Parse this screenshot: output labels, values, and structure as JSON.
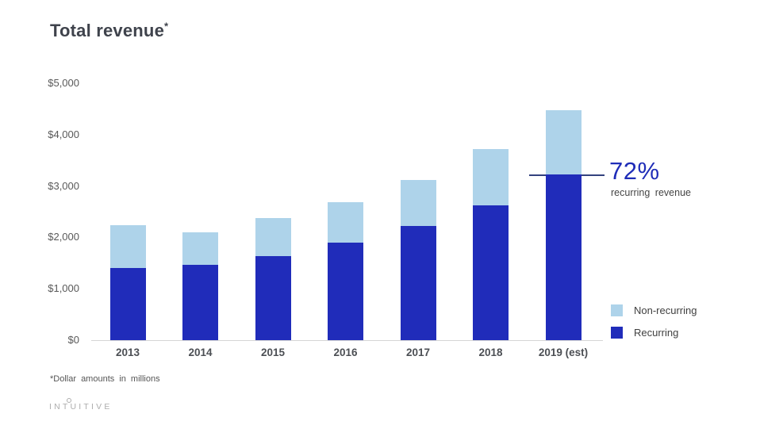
{
  "title": {
    "text": "Total revenue",
    "superscript": "*"
  },
  "chart_data": {
    "type": "bar",
    "stacked": true,
    "title": "Total revenue*",
    "categories": [
      "2013",
      "2014",
      "2015",
      "2016",
      "2017",
      "2018",
      "2019 (est)"
    ],
    "series": [
      {
        "name": "Recurring",
        "color": "#202cba",
        "values": [
          1410,
          1470,
          1640,
          1905,
          2230,
          2630,
          3220
        ]
      },
      {
        "name": "Non-recurring",
        "color": "#aed3ea",
        "values": [
          835,
          635,
          730,
          775,
          880,
          1085,
          1255
        ]
      }
    ],
    "totals": [
      2245,
      2105,
      2370,
      2680,
      3110,
      3715,
      4475
    ],
    "xlabel": "",
    "ylabel": "",
    "ylim": [
      0,
      5000
    ],
    "yticks": [
      0,
      1000,
      2000,
      3000,
      4000,
      5000
    ],
    "ytick_labels": [
      "$0",
      "$1,000",
      "$2,000",
      "$3,000",
      "$4,000",
      "$5,000"
    ],
    "grid": false,
    "legend_position": "right-bottom",
    "units_note": "*Dollar amounts in millions",
    "annotation": {
      "value": "72%",
      "label": "recurring revenue",
      "points_to": "2019 (est) recurring level"
    }
  },
  "annotation": {
    "value": "72%",
    "label": "recurring revenue"
  },
  "legend": {
    "items": [
      {
        "label": "Non-recurring",
        "color": "#aed3ea"
      },
      {
        "label": "Recurring",
        "color": "#202cba"
      }
    ]
  },
  "footnote": "*Dollar amounts in millions",
  "logo": "INTUITIVE",
  "colors": {
    "recurring": "#202cba",
    "non_recurring": "#aed3ea",
    "annotation_blue": "#1f2db8",
    "annotation_line": "#33427e",
    "title_text": "#3f434c",
    "axis_text": "#595959",
    "xlabel_text": "#4c4f54",
    "baseline": "#d6d6d6",
    "logo_gray": "#adadad"
  }
}
